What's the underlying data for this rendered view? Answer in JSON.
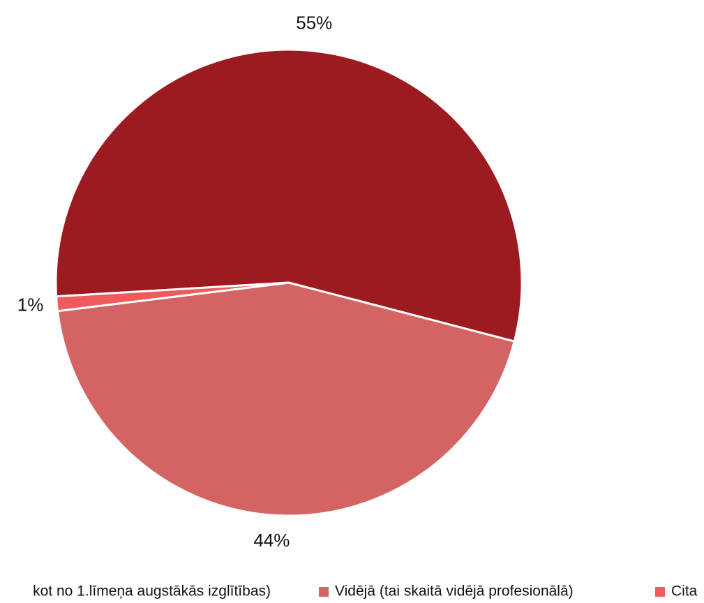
{
  "chart_data": {
    "type": "pie",
    "categories": [
      "kot no 1.līmeņa augstākās izglītības)",
      "Vidējā (tai skaitā vidējā profesionālā)",
      "Cita"
    ],
    "values": [
      55,
      44,
      1
    ],
    "value_labels": [
      "55%",
      "44%",
      "1%"
    ],
    "colors": [
      "#9c1b21",
      "#d46464",
      "#ef5a5a"
    ]
  }
}
